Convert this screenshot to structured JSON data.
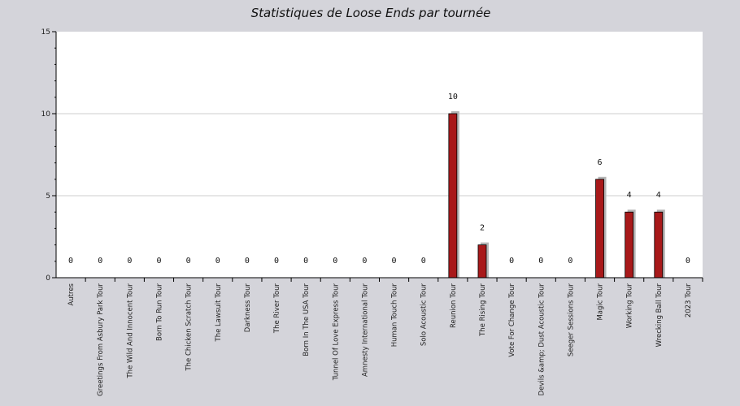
{
  "chart_data": {
    "type": "bar",
    "title": "Statistiques de Loose Ends par tournée",
    "xlabel": "",
    "ylabel": "",
    "ylim": [
      0,
      15
    ],
    "yticks": [
      0,
      5,
      10,
      15
    ],
    "grid": true,
    "categories": [
      "Autres",
      "Greetings From Asbury Park Tour",
      "The Wild And Innocent Tour",
      "Born To Run Tour",
      "The Chicken Scratch Tour",
      "The Lawsuit Tour",
      "Darkness Tour",
      "The River Tour",
      "Born In The USA Tour",
      "Tunnel Of Love Express Tour",
      "Amnesty International Tour",
      "Human Touch Tour",
      "Solo Acoustic Tour",
      "Reunion Tour",
      "The Rising Tour",
      "Vote For Change Tour",
      "Devils &amp; Dust Acoustic Tour",
      "Seeger Sessions Tour",
      "Magic Tour",
      "Working Tour",
      "Wrecking Ball Tour",
      "2023 Tour"
    ],
    "values": [
      0,
      0,
      0,
      0,
      0,
      0,
      0,
      0,
      0,
      0,
      0,
      0,
      0,
      10,
      2,
      0,
      0,
      0,
      6,
      4,
      4,
      0
    ],
    "colors": {
      "background": "#d4d4da",
      "plot_background": "#ffffff",
      "bar": "#a8191a",
      "bar_shadow": "#b5b5b5",
      "grid": "#cccccc"
    }
  }
}
